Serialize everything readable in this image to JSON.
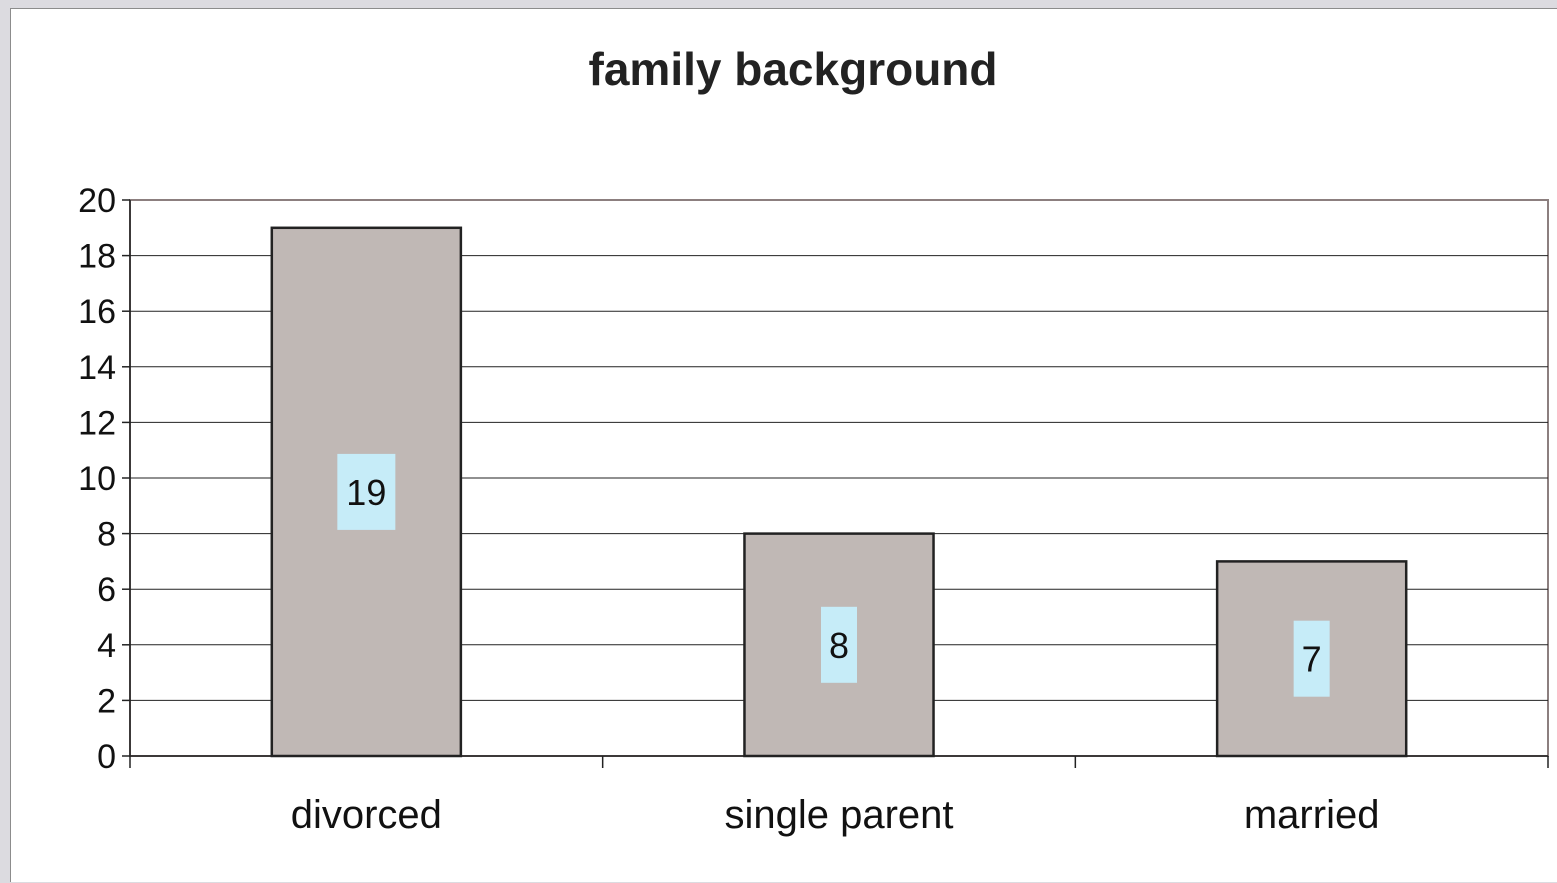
{
  "chart_data": {
    "type": "bar",
    "title": "family background",
    "xlabel": "",
    "ylabel": "",
    "categories": [
      "divorced",
      "single parent",
      "married"
    ],
    "values": [
      19,
      8,
      7
    ],
    "data_labels": [
      "19",
      "8",
      "7"
    ],
    "ylim": [
      0,
      20
    ],
    "yticks": [
      "0",
      "2",
      "4",
      "6",
      "8",
      "10",
      "12",
      "14",
      "16",
      "18",
      "20"
    ],
    "grid": true,
    "legend": "none"
  },
  "colors": {
    "bar_fill": "#c0b8b5",
    "bar_stroke": "#222222",
    "data_label_bg": "#c6ecf8",
    "gridline": "#222222",
    "plot_border": "#8c7f7f",
    "frame_bg": "#ffffff",
    "page_bg": "#dcdbe0"
  }
}
